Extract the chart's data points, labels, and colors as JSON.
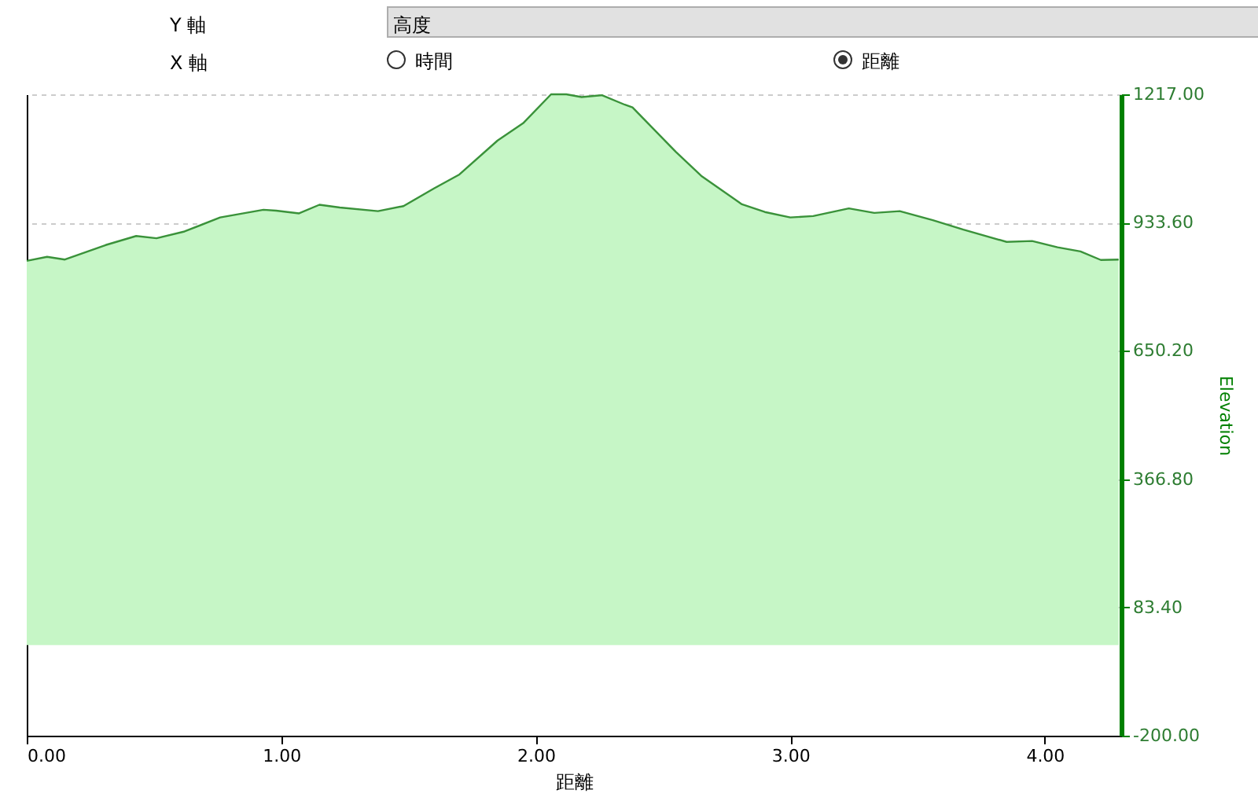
{
  "chart_data": {
    "type": "area",
    "xlabel": "距離",
    "ylabel": "Elevation",
    "annotations": [
      "Y 軸",
      "高度",
      "X 軸",
      "時間",
      "距離"
    ],
    "x": [
      0,
      0.08,
      0.15,
      0.31,
      0.43,
      0.51,
      0.62,
      0.76,
      0.93,
      0.98,
      1.07,
      1.15,
      1.23,
      1.38,
      1.48,
      1.6,
      1.7,
      1.85,
      1.95,
      2.06,
      2.12,
      2.18,
      2.26,
      2.35,
      2.38,
      2.55,
      2.65,
      2.81,
      2.9,
      3.0,
      3.09,
      3.23,
      3.33,
      3.43,
      3.56,
      3.68,
      3.85,
      3.95,
      4.05,
      4.14,
      4.22,
      4.29
    ],
    "series": [
      {
        "color": "#c6f6c6",
        "values": [
          849,
          858,
          852,
          884,
          904,
          899,
          914,
          945,
          962,
          960,
          954,
          973,
          967,
          959,
          970,
          1009,
          1040,
          1115,
          1153,
          1217,
          1217,
          1211,
          1215,
          1194,
          1188,
          1090,
          1037,
          974,
          957,
          945,
          948,
          965,
          955,
          959,
          939,
          918,
          891,
          893,
          879,
          870,
          851,
          852
        ]
      }
    ],
    "xlim": [
      0,
      4.3
    ],
    "xticks": [
      {
        "value": 0,
        "label": "0.00"
      },
      {
        "value": 1,
        "label": "1.00"
      },
      {
        "value": 2,
        "label": "2.00"
      },
      {
        "value": 3,
        "label": "3.00"
      },
      {
        "value": 4,
        "label": "4.00"
      }
    ],
    "ylim": [
      -200,
      1217
    ],
    "yticks": [
      {
        "value": -200,
        "label": "-200.00"
      },
      {
        "value": 83.4,
        "label": "83.40"
      },
      {
        "value": 366.8,
        "label": "366.80"
      },
      {
        "value": 650.2,
        "label": "650.20"
      },
      {
        "value": 933.6,
        "label": "933.60"
      },
      {
        "value": 1217,
        "label": "1217.00"
      }
    ],
    "grid": "y"
  }
}
